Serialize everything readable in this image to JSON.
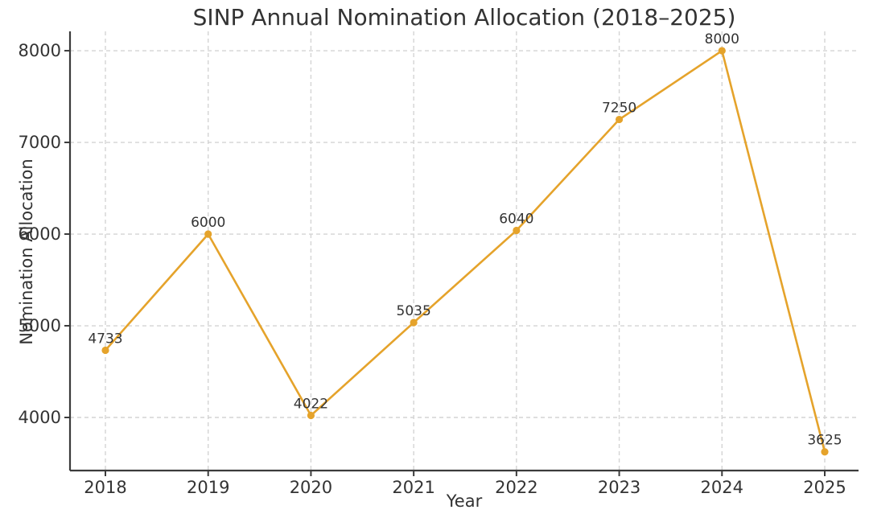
{
  "chart_data": {
    "type": "line",
    "title": "SINP Annual Nomination Allocation (2018–2025)",
    "xlabel": "Year",
    "ylabel": "Nomination Allocation",
    "categories": [
      "2018",
      "2019",
      "2020",
      "2021",
      "2022",
      "2023",
      "2024",
      "2025"
    ],
    "series": [
      {
        "name": "Nomination Allocation",
        "values": [
          4733,
          6000,
          4022,
          5035,
          6040,
          7250,
          8000,
          3625
        ]
      }
    ],
    "point_labels": [
      "4733",
      "6000",
      "4022",
      "5035",
      "6040",
      "7250",
      "8000",
      "3625"
    ],
    "yticks": [
      4000,
      5000,
      6000,
      7000,
      8000
    ],
    "ylim": [
      3421,
      8211
    ],
    "grid": true,
    "grid_style": "dashed",
    "legend": "none",
    "style": {
      "line_color": "#E5A32B",
      "marker_color": "#E5A32B",
      "grid_color": "#d4d4d4",
      "axis_color": "#3b3b3b",
      "text_color": "#333333",
      "background": "#ffffff"
    }
  }
}
